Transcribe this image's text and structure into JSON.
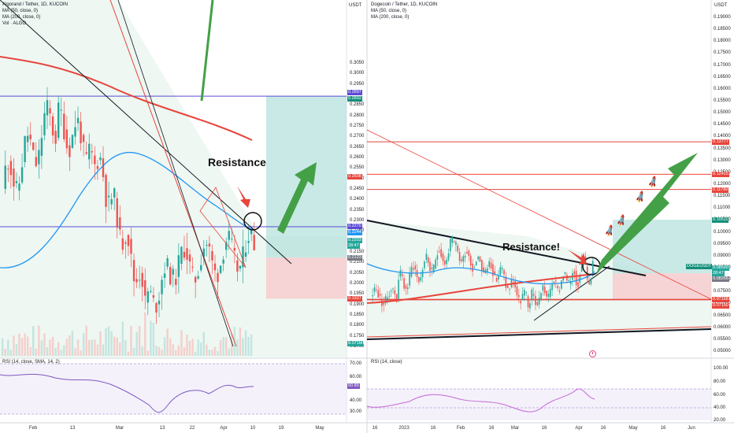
{
  "left": {
    "header": {
      "symbol": "Algorand / Tether, 1D, KUCOIN",
      "ma50": "MA (50, close, 0)",
      "ma200": "MA (200, close, 0)",
      "vol": "Vol · ALGO"
    },
    "currency": "USDT",
    "annotation": "Resistance",
    "price_axis": [
      "0.3050",
      "0.3000",
      "0.2950",
      "0.2850",
      "0.2800",
      "0.2750",
      "0.2700",
      "0.2650",
      "0.2600",
      "0.2550",
      "0.2500",
      "0.2450",
      "0.2400",
      "0.2350",
      "0.2300",
      "0.2250",
      "0.2150",
      "0.2100",
      "0.2050",
      "0.2000",
      "0.1950",
      "0.1900",
      "0.1850",
      "0.1800",
      "0.1750",
      "0.1700"
    ],
    "price_tags": [
      {
        "text": "0.2897",
        "color": "#5b4bd6"
      },
      {
        "text": "0.2892",
        "color": "#138f7a"
      },
      {
        "text": "0.2508",
        "color": "#e8453c"
      },
      {
        "text": "0.2270",
        "color": "#5b4bd6"
      },
      {
        "text": "0.2244",
        "color": "#2196f3"
      },
      {
        "text": "0.2203",
        "color": "#26a69a"
      },
      {
        "text": "28:47",
        "color": "#26a69a"
      },
      {
        "text": "0.2123",
        "color": "#787b86"
      },
      {
        "text": "0.1927",
        "color": "#e8453c"
      },
      {
        "text": "8.071M",
        "color": "#26a69a"
      }
    ],
    "rsi_label": "RSI (14, close, SMA, 14, 2)",
    "rsi_axis": [
      "70.00",
      "60.00",
      "40.00",
      "30.00"
    ],
    "rsi_tag": "50.89",
    "date_axis": [
      "Feb",
      "13",
      "Mar",
      "13",
      "22",
      "Apr",
      "10",
      "19",
      "May"
    ]
  },
  "right": {
    "header": {
      "symbol": "Dogecoin / Tether, 1D, KUCOIN",
      "ma50": "MA (50, close, 0)",
      "ma200": "MA (200, close, 0)"
    },
    "currency": "USDT",
    "annotation": "Resistance!",
    "price_axis": [
      "0.19000",
      "0.18500",
      "0.18000",
      "0.17500",
      "0.17000",
      "0.16500",
      "0.16000",
      "0.15500",
      "0.15000",
      "0.14500",
      "0.14000",
      "0.13500",
      "0.13000",
      "0.12500",
      "0.12000",
      "0.11500",
      "0.11000",
      "0.10500",
      "0.10000",
      "0.09500",
      "0.09000",
      "0.08500",
      "0.08000",
      "0.07500",
      "0.07000",
      "0.06500",
      "0.06000",
      "0.05500",
      "0.05000"
    ],
    "price_tags": [
      {
        "text": "0.13777",
        "color": "#e8453c"
      },
      {
        "text": "0.12415",
        "color": "#e8453c"
      },
      {
        "text": "0.11780",
        "color": "#e8453c"
      },
      {
        "text": "0.10511",
        "color": "#138f7a"
      },
      {
        "text": "DOGEUSDT",
        "color": "#138f7a"
      },
      {
        "text": "0.08500",
        "color": "#26a69a"
      },
      {
        "text": "28:47",
        "color": "#26a69a"
      },
      {
        "text": "0.08266",
        "color": "#787b86"
      },
      {
        "text": "0.07168",
        "color": "#e8453c"
      },
      {
        "text": "0.07150",
        "color": "#e8453c"
      }
    ],
    "rsi_label": "RSI (14, close)",
    "rsi_axis": [
      "100.00",
      "80.00",
      "60.00",
      "40.00",
      "20.00"
    ],
    "date_axis": [
      "16",
      "2023",
      "16",
      "Feb",
      "16",
      "Mar",
      "16",
      "Apr",
      "16",
      "May",
      "16",
      "Jun"
    ]
  },
  "colors": {
    "up": "#26a69a",
    "down": "#ef5350",
    "ma50": "#2196f3",
    "ma200": "#e8453c",
    "arrow": "#43a047",
    "rsi": "#7e57c2"
  }
}
